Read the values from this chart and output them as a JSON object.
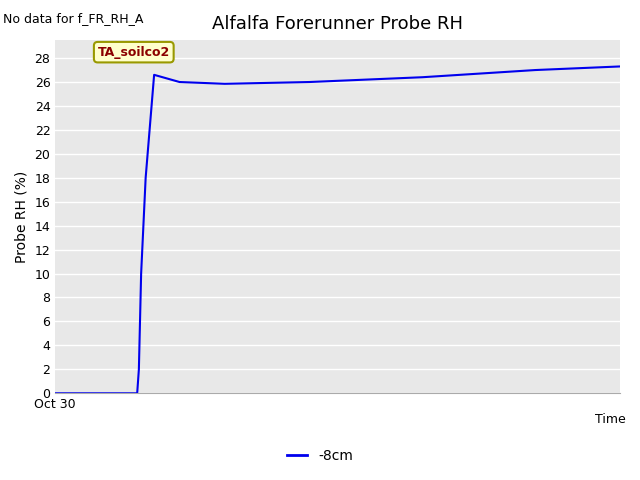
{
  "title": "Alfalfa Forerunner Probe RH",
  "no_data_text": "No data for f_FR_RH_A",
  "ylabel": "Probe RH (%)",
  "xlabel": "Time",
  "yticks": [
    0,
    2,
    4,
    6,
    8,
    10,
    12,
    14,
    16,
    18,
    20,
    22,
    24,
    26,
    28
  ],
  "ylim": [
    0,
    29.5
  ],
  "xtick_label": "Oct 30",
  "legend_label": "-8cm",
  "legend_color": "#0000ee",
  "line_color": "#0000ee",
  "plot_bg_color": "#e8e8e8",
  "fig_bg_color": "#ffffff",
  "grid_color": "#ffffff",
  "annotation_text": "TA_soilco2",
  "x_data": [
    0.0,
    0.04,
    0.06,
    0.08,
    0.1,
    0.12,
    0.145,
    0.148,
    0.152,
    0.16,
    0.175,
    0.22,
    0.3,
    0.45,
    0.65,
    0.85,
    1.0
  ],
  "y_data": [
    0,
    0,
    0,
    0,
    0,
    0,
    0,
    2,
    10,
    18,
    26.6,
    26.0,
    25.85,
    26.0,
    26.4,
    27.0,
    27.3
  ]
}
